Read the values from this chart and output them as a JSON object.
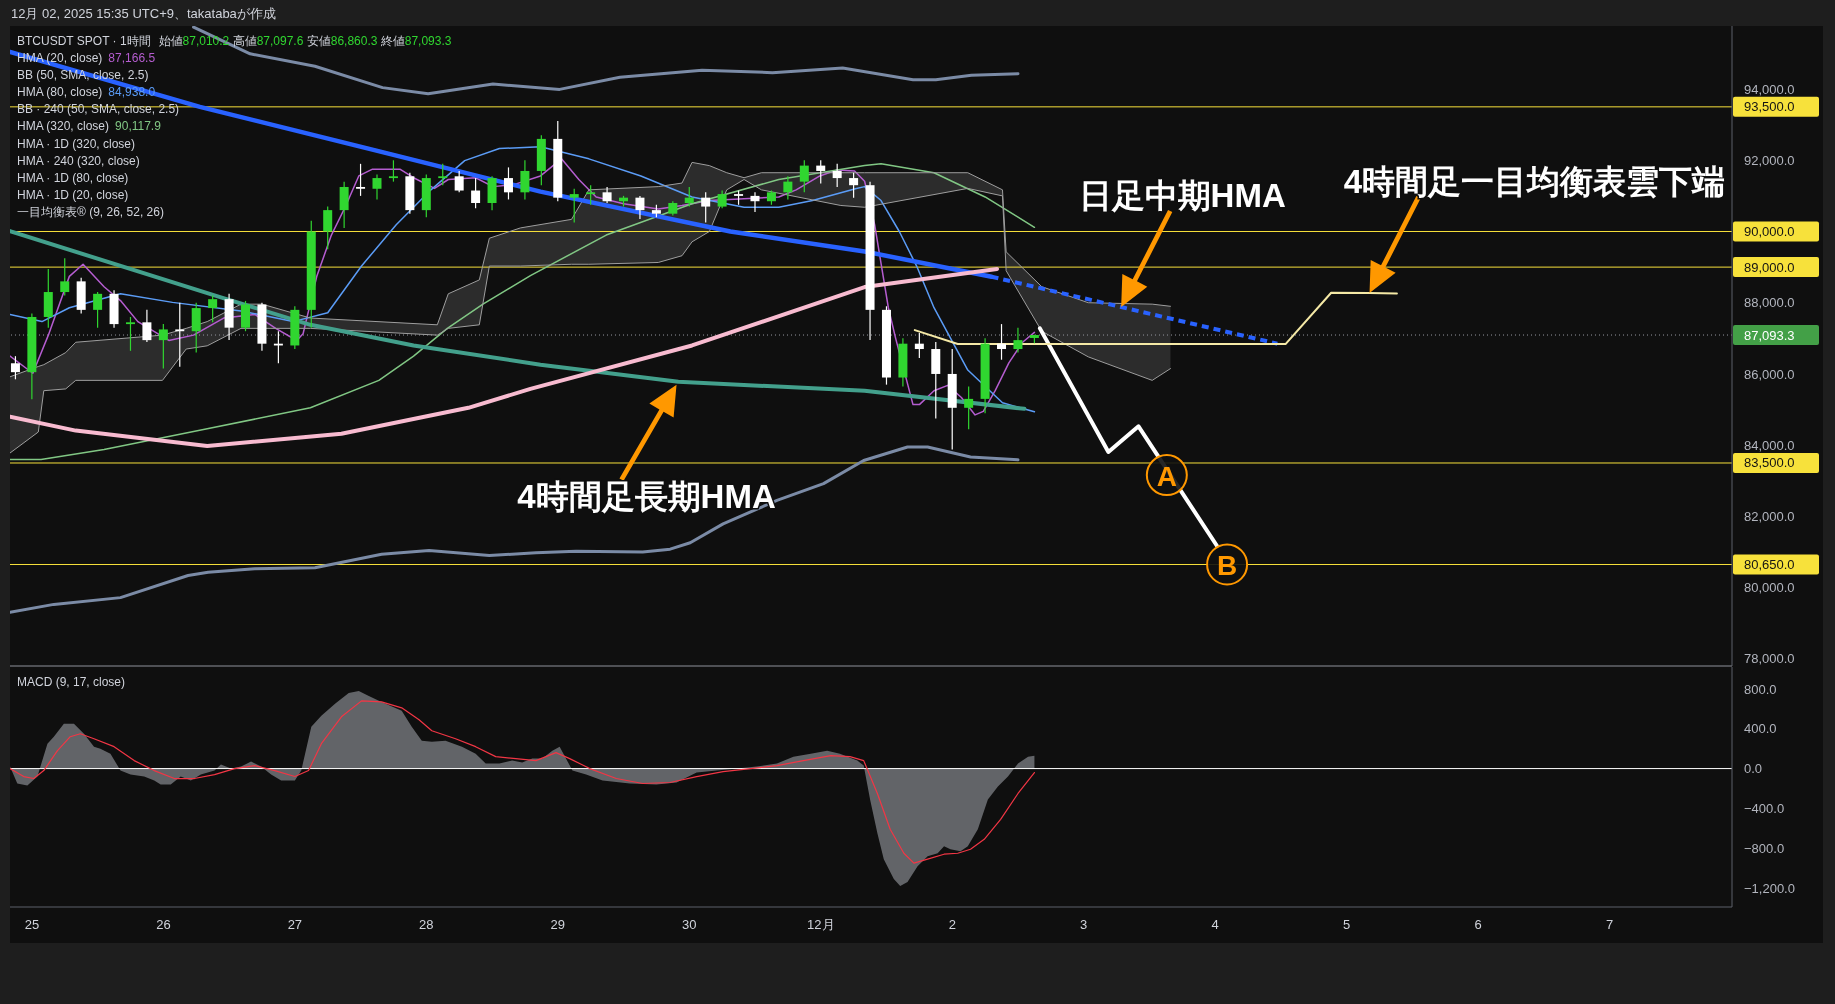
{
  "chart_data": [
    {
      "type": "candlestick",
      "title": "BTCUSDT SPOT · 1時間",
      "annotations": [
        "12月 02, 2025 15:35 UTC+9、takatabaが作成",
        "始値87,010.2 高値87,097.6 安値86,860.3 終値87,093.3",
        "HMA (20, close) 87,166.5",
        "BB (50, SMA, close, 2.5)",
        "HMA (80, close) 84,938.0",
        "BB · 240 (50, SMA, close, 2.5)",
        "HMA (320, close) 90,117.9",
        "HMA · 1D (320, close)",
        "HMA · 240 (320, close)",
        "HMA · 1D (80, close)",
        "HMA · 1D (20, close)",
        "一目均衡表® (9, 26, 52, 26)",
        {
          "text": "日足中期HMA",
          "x": "2025-12-03T06:50",
          "y": 87880
        },
        {
          "text": "4時間足一目均衡表雲下端",
          "x": "2025-12-05T04:10",
          "y": 88270
        },
        {
          "text": "4時間足長期HMA",
          "x": "2025-11-29T21:40",
          "y": 85700
        },
        {
          "text": "A",
          "x": "2025-12-03T15:10",
          "y": 83160
        },
        {
          "text": "B",
          "x": "2025-12-04T02:10",
          "y": 80650
        }
      ],
      "x": [
        "2025-11-24T21:00",
        "2025-11-25T00:00",
        "2025-11-25T03:00",
        "2025-11-25T06:00",
        "2025-11-25T09:00",
        "2025-11-25T12:00",
        "2025-11-25T15:00",
        "2025-11-25T18:00",
        "2025-11-25T21:00",
        "2025-11-26T00:00",
        "2025-11-26T03:00",
        "2025-11-26T06:00",
        "2025-11-26T09:00",
        "2025-11-26T12:00",
        "2025-11-26T15:00",
        "2025-11-26T18:00",
        "2025-11-26T21:00",
        "2025-11-27T00:00",
        "2025-11-27T03:00",
        "2025-11-27T06:00",
        "2025-11-27T09:00",
        "2025-11-27T12:00",
        "2025-11-27T15:00",
        "2025-11-27T18:00",
        "2025-11-27T21:00",
        "2025-11-28T00:00",
        "2025-11-28T03:00",
        "2025-11-28T06:00",
        "2025-11-28T09:00",
        "2025-11-28T12:00",
        "2025-11-28T15:00",
        "2025-11-28T18:00",
        "2025-11-28T21:00",
        "2025-11-29T00:00",
        "2025-11-29T03:00",
        "2025-11-29T06:00",
        "2025-11-29T09:00",
        "2025-11-29T12:00",
        "2025-11-29T15:00",
        "2025-11-29T18:00",
        "2025-11-29T21:00",
        "2025-11-30T00:00",
        "2025-11-30T03:00",
        "2025-11-30T06:00",
        "2025-11-30T09:00",
        "2025-11-30T12:00",
        "2025-11-30T15:00",
        "2025-11-30T18:00",
        "2025-11-30T21:00",
        "2025-12-01T00:00",
        "2025-12-01T03:00",
        "2025-12-01T06:00",
        "2025-12-01T09:00",
        "2025-12-01T12:00",
        "2025-12-01T15:00",
        "2025-12-01T18:00",
        "2025-12-01T21:00",
        "2025-12-02T00:00",
        "2025-12-02T03:00",
        "2025-12-02T06:00",
        "2025-12-02T09:00",
        "2025-12-02T12:00",
        "2025-12-02T15:00"
      ],
      "ohlc": [
        [
          86300,
          86500,
          85850,
          86050
        ],
        [
          86050,
          87700,
          85290,
          87600
        ],
        [
          87600,
          88950,
          87300,
          88300
        ],
        [
          88300,
          89250,
          88200,
          88600
        ],
        [
          88600,
          88700,
          87700,
          87800
        ],
        [
          87800,
          88300,
          87300,
          88250
        ],
        [
          88250,
          88350,
          87300,
          87400
        ],
        [
          87400,
          87600,
          86650,
          87450
        ],
        [
          87450,
          87800,
          86900,
          86950
        ],
        [
          86950,
          87400,
          86150,
          87250
        ],
        [
          87250,
          88000,
          86200,
          87200
        ],
        [
          87200,
          88000,
          86600,
          87850
        ],
        [
          87850,
          88200,
          87450,
          88100
        ],
        [
          88100,
          88250,
          86950,
          87300
        ],
        [
          87300,
          88050,
          87200,
          87950
        ],
        [
          87950,
          88000,
          86650,
          86850
        ],
        [
          86850,
          87200,
          86300,
          86800
        ],
        [
          86800,
          87900,
          86700,
          87800
        ],
        [
          87800,
          90300,
          87300,
          90000
        ],
        [
          90000,
          90700,
          89500,
          90600
        ],
        [
          90600,
          91400,
          90100,
          91250
        ],
        [
          91250,
          91900,
          91000,
          91200
        ],
        [
          91200,
          91600,
          90900,
          91500
        ],
        [
          91500,
          92000,
          91400,
          91550
        ],
        [
          91550,
          91650,
          90500,
          90600
        ],
        [
          90600,
          91600,
          90400,
          91500
        ],
        [
          91500,
          91900,
          91300,
          91550
        ],
        [
          91550,
          91700,
          91100,
          91150
        ],
        [
          91150,
          91500,
          90650,
          90800
        ],
        [
          90800,
          91550,
          90600,
          91500
        ],
        [
          91500,
          91800,
          90900,
          91100
        ],
        [
          91100,
          92000,
          90900,
          91700
        ],
        [
          91700,
          92700,
          91300,
          92600
        ],
        [
          92600,
          93100,
          90850,
          90950
        ],
        [
          90950,
          91200,
          90250,
          91050
        ],
        [
          91050,
          91300,
          90750,
          91100
        ],
        [
          91100,
          91250,
          90800,
          90850
        ],
        [
          90850,
          91000,
          90700,
          90950
        ],
        [
          90950,
          91000,
          90350,
          90600
        ],
        [
          90600,
          90750,
          90400,
          90500
        ],
        [
          90500,
          90850,
          90450,
          90800
        ],
        [
          90800,
          91250,
          90700,
          90950
        ],
        [
          90950,
          91100,
          90250,
          90700
        ],
        [
          90700,
          91150,
          90650,
          91050
        ],
        [
          91050,
          91150,
          90750,
          91000
        ],
        [
          91000,
          91100,
          90550,
          90850
        ],
        [
          90850,
          91150,
          90750,
          91100
        ],
        [
          91100,
          91550,
          90900,
          91400
        ],
        [
          91400,
          92000,
          91100,
          91850
        ],
        [
          91850,
          92000,
          91350,
          91700
        ],
        [
          91700,
          91900,
          91250,
          91500
        ],
        [
          91500,
          91650,
          90950,
          91300
        ],
        [
          91300,
          91400,
          86950,
          87800
        ],
        [
          87800,
          87900,
          85700,
          85900
        ],
        [
          85900,
          87000,
          85650,
          86850
        ],
        [
          86850,
          87150,
          86450,
          86700
        ],
        [
          86700,
          86900,
          84750,
          86000
        ],
        [
          86000,
          86700,
          83880,
          85050
        ],
        [
          85050,
          85650,
          84450,
          85300
        ],
        [
          85300,
          87000,
          84900,
          86850
        ],
        [
          86850,
          87400,
          86400,
          86700
        ],
        [
          86700,
          87300,
          86600,
          86950
        ],
        [
          87010.2,
          87097.6,
          86860.3,
          87093.3
        ]
      ],
      "colors": [
        "#ffffff",
        "#30d630",
        "#30d630",
        "#30d630",
        "#ffffff",
        "#30d630",
        "#ffffff",
        "#30d630",
        "#ffffff",
        "#30d630",
        "#ffffff",
        "#30d630",
        "#30d630",
        "#ffffff",
        "#30d630",
        "#ffffff",
        "#ffffff",
        "#30d630",
        "#30d630",
        "#30d630",
        "#30d630",
        "#ffffff",
        "#30d630",
        "#30d630",
        "#ffffff",
        "#30d630",
        "#30d630",
        "#ffffff",
        "#ffffff",
        "#30d630",
        "#ffffff",
        "#30d630",
        "#30d630",
        "#ffffff",
        "#30d630",
        "#30d630",
        "#ffffff",
        "#30d630",
        "#ffffff",
        "#ffffff",
        "#30d630",
        "#30d630",
        "#ffffff",
        "#30d630",
        "#ffffff",
        "#ffffff",
        "#30d630",
        "#30d630",
        "#30d630",
        "#ffffff",
        "#ffffff",
        "#ffffff",
        "#ffffff",
        "#ffffff",
        "#30d630",
        "#ffffff",
        "#ffffff",
        "#ffffff",
        "#30d630",
        "#30d630",
        "#ffffff",
        "#30d630",
        "#30d630"
      ],
      "series": [
        {
          "type": "line",
          "color": "#b55dd0",
          "x": [
            "2025-11-24T20:00",
            "2025-11-25T00:10",
            "2025-11-25T03:00",
            "2025-11-25T06:50",
            "2025-11-25T09:20",
            "2025-11-25T13:10",
            "2025-11-25T16:10",
            "2025-11-25T19:20",
            "2025-11-26T01:00",
            "2025-11-26T05:30",
            "2025-11-26T11:00",
            "2025-11-26T16:40",
            "2025-11-26T20:30",
            "2025-11-27T00:20",
            "2025-11-27T01:30",
            "2025-11-27T04:00",
            "2025-11-27T06:40",
            "2025-11-27T09:10",
            "2025-11-27T11:40",
            "2025-11-27T14:10",
            "2025-11-27T19:10",
            "2025-11-27T21:40",
            "2025-11-28T01:30",
            "2025-11-28T04:00",
            "2025-11-28T09:00",
            "2025-11-28T12:10",
            "2025-11-28T15:50",
            "2025-11-28T20:50",
            "2025-11-29T00:40",
            "2025-11-29T03:50",
            "2025-11-29T07:00",
            "2025-11-29T12:00",
            "2025-11-29T18:20",
            "2025-11-29T22:40",
            "2025-11-30T03:40",
            "2025-11-30T10:00",
            "2025-11-30T16:20",
            "2025-11-30T19:30",
            "2025-11-30T23:50",
            "2025-12-01T03:00",
            "2025-12-01T06:10",
            "2025-12-01T08:00",
            "2025-12-01T09:50",
            "2025-12-01T12:20",
            "2025-12-01T13:40",
            "2025-12-01T16:50",
            "2025-12-01T18:00",
            "2025-12-01T20:40",
            "2025-12-01T23:10",
            "2025-12-02T01:40",
            "2025-12-02T04:10",
            "2025-12-02T05:40",
            "2025-12-02T07:50",
            "2025-12-02T10:20",
            "2025-12-02T12:50",
            "2025-12-02T15:00"
          ],
          "values": [
            86500,
            86020,
            87090,
            88740,
            89080,
            88450,
            88060,
            87470,
            86940,
            87090,
            87570,
            87670,
            87280,
            86940,
            87130,
            88740,
            89900,
            90680,
            91560,
            91750,
            91750,
            91510,
            91210,
            91460,
            91510,
            91260,
            91310,
            91560,
            92040,
            91460,
            90970,
            90780,
            90630,
            90730,
            90870,
            90920,
            90970,
            91170,
            91560,
            91730,
            91700,
            91410,
            90190,
            87860,
            87000,
            85140,
            85140,
            85530,
            85680,
            85340,
            84850,
            84950,
            85530,
            86310,
            86890,
            87166.5
          ]
        },
        {
          "type": "line",
          "color": "#5b9cf6",
          "x": [
            "2025-11-24T20:00",
            "2025-11-25T01:50",
            "2025-11-25T06:50",
            "2025-11-25T16:10",
            "2025-11-26T01:40",
            "2025-11-26T14:10",
            "2025-11-26T23:40",
            "2025-11-27T06:00",
            "2025-11-27T12:10",
            "2025-11-27T18:30",
            "2025-11-28T00:50",
            "2025-11-28T07:00",
            "2025-11-28T13:20",
            "2025-11-28T20:50",
            "2025-11-29T05:40",
            "2025-11-29T15:10",
            "2025-11-30T00:30",
            "2025-11-30T10:00",
            "2025-11-30T16:20",
            "2025-11-30T22:30",
            "2025-12-01T06:30",
            "2025-12-01T08:00",
            "2025-12-01T11:00",
            "2025-12-01T14:20",
            "2025-12-01T17:30",
            "2025-12-01T20:40",
            "2025-12-02T02:50",
            "2025-12-02T09:10",
            "2025-12-02T15:00"
          ],
          "values": [
            87670,
            87470,
            87860,
            88250,
            88010,
            87770,
            87470,
            87720,
            89030,
            90190,
            91170,
            91990,
            92330,
            92380,
            92040,
            91560,
            90970,
            90680,
            90680,
            90870,
            91210,
            91260,
            90870,
            90000,
            89030,
            87860,
            86110,
            85190,
            84938
          ]
        },
        {
          "type": "line",
          "color": "#81c784",
          "x": [
            "2025-11-24T20:00",
            "2025-11-25T01:40",
            "2025-11-25T13:10",
            "2025-11-26T08:00",
            "2025-11-27T02:50",
            "2025-11-27T15:20",
            "2025-11-27T21:40",
            "2025-11-28T03:50",
            "2025-11-28T10:20",
            "2025-11-28T19:00",
            "2025-11-29T08:50",
            "2025-11-30T00:30",
            "2025-11-30T16:20",
            "2025-12-01T08:00",
            "2025-12-01T11:00",
            "2025-12-01T20:40",
            "2025-12-02T06:00",
            "2025-12-02T15:00"
          ],
          "values": [
            83600,
            83600,
            83880,
            84460,
            85050,
            85820,
            86500,
            87280,
            87960,
            88760,
            89900,
            90780,
            91460,
            91850,
            91900,
            91650,
            90970,
            90117.9
          ]
        },
        {
          "type": "line",
          "color": "#7b8ba6",
          "x": [
            "2025-11-26T05:30",
            "2025-11-26T15:50",
            "2025-11-27T03:40",
            "2025-11-27T16:00",
            "2025-11-28T00:20",
            "2025-11-28T12:10",
            "2025-11-29T00:20",
            "2025-11-29T11:20",
            "2025-11-30T02:20",
            "2025-11-30T15:10",
            "2025-12-01T04:00",
            "2025-12-01T16:50",
            "2025-12-01T21:00",
            "2025-12-02T03:30",
            "2025-12-02T12:00"
          ],
          "values": [
            95740,
            94990,
            94640,
            94040,
            93870,
            94140,
            93990,
            94330,
            94530,
            94460,
            94590,
            94260,
            94260,
            94390,
            94430
          ]
        },
        {
          "type": "line",
          "color": "#7b8ba6",
          "x": [
            "2025-11-24T20:00",
            "2025-11-25T04:00",
            "2025-11-25T16:10",
            "2025-11-26T04:30",
            "2025-11-26T08:10",
            "2025-11-26T16:40",
            "2025-11-27T03:40",
            "2025-11-27T15:50",
            "2025-11-28T00:30",
            "2025-11-28T11:30",
            "2025-11-28T20:00",
            "2025-11-29T03:20",
            "2025-11-29T15:30",
            "2025-11-29T20:30",
            "2025-11-30T00:10",
            "2025-11-30T06:10",
            "2025-11-30T16:00",
            "2025-12-01T00:30",
            "2025-12-01T07:50",
            "2025-12-01T15:50",
            "2025-12-01T19:30",
            "2025-12-02T03:20",
            "2025-12-02T12:00"
          ],
          "values": [
            79310,
            79530,
            79720,
            80340,
            80430,
            80530,
            80560,
            80940,
            81040,
            80900,
            80980,
            81020,
            81000,
            81080,
            81260,
            81790,
            82450,
            82920,
            83570,
            83950,
            83950,
            83670,
            83590
          ]
        },
        {
          "type": "line",
          "color": "#9e9e9e",
          "x": [
            "2025-11-24T20:00",
            "2025-11-25T01:10",
            "2025-11-25T02:10",
            "2025-11-25T06:10",
            "2025-11-25T08:00",
            "2025-11-25T23:50",
            "2025-11-26T04:10",
            "2025-11-26T08:00",
            "2025-11-26T14:10",
            "2025-11-26T18:00",
            "2025-11-27T02:50",
            "2025-11-28T02:00",
            "2025-11-28T04:00",
            "2025-11-28T09:40",
            "2025-11-28T11:30",
            "2025-11-28T17:10",
            "2025-11-29T02:30",
            "2025-11-29T05:40",
            "2025-11-29T18:20",
            "2025-11-29T22:40",
            "2025-11-30T00:30",
            "2025-11-30T03:40",
            "2025-11-30T06:50",
            "2025-11-30T10:00",
            "2025-11-30T13:10",
            "2025-12-01T03:40",
            "2025-12-01T08:00",
            "2025-12-02T02:50",
            "2025-12-02T09:10",
            "2025-12-02T09:50",
            "2025-12-02T16:20",
            "2025-12-03T00:50",
            "2025-12-03T12:30",
            "2025-12-03T15:50"
          ],
          "values": [
            85920,
            86210,
            86260,
            86600,
            86890,
            87090,
            87280,
            87470,
            87960,
            87960,
            87570,
            87380,
            88250,
            88640,
            89810,
            90100,
            90340,
            91170,
            91260,
            91360,
            91940,
            91850,
            91650,
            91510,
            91650,
            91650,
            91650,
            91650,
            91170,
            89430,
            88450,
            88000,
            87960,
            87900
          ],
          "upper": [
            85920,
            86210,
            86260,
            86600,
            86890,
            87090,
            87280,
            87470,
            87960,
            87960,
            87570,
            87380,
            88250,
            88640,
            89810,
            90100,
            90340,
            91170,
            91260,
            91360,
            91940,
            91850,
            91650,
            91510,
            91650,
            91650,
            91650,
            91650,
            91170,
            89430,
            88450,
            88000,
            87960,
            87900
          ],
          "lower": [
            83780,
            84370,
            85530,
            85580,
            85820,
            85820,
            86700,
            86790,
            87280,
            87280,
            87280,
            87090,
            87280,
            87380,
            89030,
            89030,
            89080,
            89080,
            89130,
            89320,
            89710,
            90000,
            91170,
            91460,
            91170,
            90730,
            90680,
            91210,
            91000,
            88900,
            87200,
            86480,
            85820,
            86150
          ]
        },
        {
          "type": "line",
          "color": "#9e9e9e",
          "x": [
            "2025-11-24T20:00",
            "2025-11-25T01:10",
            "2025-11-25T02:10",
            "2025-11-25T06:10",
            "2025-11-25T08:00",
            "2025-11-25T23:50",
            "2025-11-26T04:10",
            "2025-11-26T08:00",
            "2025-11-26T14:10",
            "2025-11-26T18:00",
            "2025-11-27T02:50",
            "2025-11-28T02:00",
            "2025-11-28T04:00",
            "2025-11-28T09:40",
            "2025-11-28T11:30",
            "2025-11-28T17:10",
            "2025-11-29T02:30",
            "2025-11-29T05:40",
            "2025-11-29T18:20",
            "2025-11-29T22:40",
            "2025-11-30T00:30",
            "2025-11-30T03:40",
            "2025-11-30T06:50",
            "2025-11-30T10:00",
            "2025-11-30T13:10",
            "2025-12-01T03:40",
            "2025-12-01T08:00",
            "2025-12-02T02:50",
            "2025-12-02T09:10",
            "2025-12-02T09:50",
            "2025-12-02T16:20",
            "2025-12-03T00:50",
            "2025-12-03T12:30",
            "2025-12-03T15:50"
          ],
          "values": [
            83780,
            84370,
            85530,
            85580,
            85820,
            85820,
            86700,
            86790,
            87280,
            87280,
            87280,
            87090,
            87280,
            87380,
            89030,
            89030,
            89080,
            89080,
            89130,
            89320,
            89710,
            90000,
            91170,
            91460,
            91170,
            90730,
            90680,
            91210,
            91000,
            88900,
            87200,
            86480,
            85820,
            86150
          ]
        },
        {
          "type": "line",
          "color": "#2962ff",
          "x": [
            "2025-11-24T20:00",
            "2025-11-26T06:40",
            "2025-11-27T14:20",
            "2025-11-28T20:50",
            "2025-11-30T07:30",
            "2025-12-01T08:00",
            "2025-12-02T07:10"
          ],
          "values": [
            95040,
            93500,
            92290,
            91120,
            90000,
            89440,
            88730
          ]
        },
        {
          "type": "line",
          "color": "#2962ff",
          "line_style": "dotted",
          "x": [
            "2025-12-02T07:10",
            "2025-12-03T06:50",
            "2025-12-04T11:20"
          ],
          "values": [
            88730,
            87880,
            86850
          ]
        },
        {
          "type": "line",
          "color": "#43a08c",
          "x": [
            "2025-11-24T20:00",
            "2025-11-26T10:30",
            "2025-11-27T02:50",
            "2025-11-27T21:40",
            "2025-11-28T20:50",
            "2025-11-29T22:00",
            "2025-12-01T08:00",
            "2025-12-02T13:10"
          ],
          "values": [
            90010,
            88150,
            87380,
            86800,
            86260,
            85780,
            85530,
            85020
          ]
        },
        {
          "type": "line",
          "color": "#f8bbd0",
          "x": [
            "2025-11-24T20:00",
            "2025-11-25T08:00",
            "2025-11-26T08:00",
            "2025-11-27T08:30",
            "2025-11-28T07:40",
            "2025-11-28T19:00",
            "2025-11-30T00:30",
            "2025-12-01T08:00",
            "2025-12-02T08:10"
          ],
          "values": [
            84800,
            84410,
            83980,
            84320,
            85050,
            85580,
            86800,
            88440,
            88950
          ]
        },
        {
          "type": "line",
          "color": "#ffffff",
          "x": [
            "2025-12-02T16:00",
            "2025-12-03T04:30",
            "2025-12-03T10:00",
            "2025-12-04T00:20"
          ],
          "values": [
            87280,
            83810,
            84530,
            81170
          ]
        },
        {
          "type": "line",
          "color": "#f5e9a6",
          "x": [
            "2025-12-01T17:10",
            "2025-12-02T01:00",
            "2025-12-04T12:50",
            "2025-12-04T21:10",
            "2025-12-05T04:10",
            "2025-12-05T09:10"
          ],
          "values": [
            87230,
            86840,
            86840,
            88280,
            88270,
            88260
          ]
        }
      ],
      "xlim": [
        "2025-11-24T20:00",
        "2025-12-07T22:20"
      ],
      "ylim": [
        77800,
        95770
      ],
      "yticks": [
        {
          "value": 94000,
          "label": "94,000.0"
        },
        {
          "value": 92000,
          "label": "92,000.0"
        },
        {
          "value": 88000,
          "label": "88,000.0"
        },
        {
          "value": 86000,
          "label": "86,000.0"
        },
        {
          "value": 84000,
          "label": "84,000.0"
        },
        {
          "value": 82000,
          "label": "82,000.0"
        },
        {
          "value": 80000,
          "label": "80,000.0"
        },
        {
          "value": 78000,
          "label": "78,000.0"
        }
      ],
      "ref_lines": [
        {
          "axis": "y",
          "value": 93500,
          "label": "93,500.0",
          "color": "#f7e13b"
        },
        {
          "axis": "y",
          "value": 90000,
          "label": "90,000.0",
          "color": "#f7e13b"
        },
        {
          "axis": "y",
          "value": 89000,
          "label": "89,000.0",
          "color": "#f7e13b"
        },
        {
          "axis": "y",
          "value": 83500,
          "label": "83,500.0",
          "color": "#f7e13b"
        },
        {
          "axis": "y",
          "value": 80650,
          "label": "80,650.0",
          "color": "#f7e13b"
        },
        {
          "axis": "y",
          "value": 87093.3,
          "label": "87,093.3",
          "color": "#9598a1",
          "line_style": "dotted"
        }
      ],
      "tick_labels": "y"
    },
    {
      "type": "area",
      "title": "MACD (9, 17, close)",
      "series": [
        {
          "type": "area",
          "color": "#67696e",
          "x": [
            "2025-11-24T20:00",
            "2025-11-24T21:20",
            "2025-11-24T23:10",
            "2025-11-25T01:00",
            "2025-11-25T02:50",
            "2025-11-25T04:00",
            "2025-11-25T05:50",
            "2025-11-25T07:40",
            "2025-11-25T09:30",
            "2025-11-25T11:20",
            "2025-11-25T12:30",
            "2025-11-25T14:20",
            "2025-11-25T16:10",
            "2025-11-25T18:00",
            "2025-11-25T20:30",
            "2025-11-25T22:20",
            "2025-11-25T23:30",
            "2025-11-26T01:20",
            "2025-11-26T03:10",
            "2025-11-26T05:00",
            "2025-11-26T06:50",
            "2025-11-26T09:20",
            "2025-11-26T10:30",
            "2025-11-26T12:20",
            "2025-11-26T14:10",
            "2025-11-26T16:00",
            "2025-11-26T17:50",
            "2025-11-26T19:40",
            "2025-11-26T21:30",
            "2025-11-27T00:00",
            "2025-11-27T01:10",
            "2025-11-27T03:00",
            "2025-11-27T04:50",
            "2025-11-27T07:20",
            "2025-11-27T09:50",
            "2025-11-27T11:40",
            "2025-11-27T13:30",
            "2025-11-27T15:20",
            "2025-11-27T19:30",
            "2025-11-27T21:20",
            "2025-11-27T23:10",
            "2025-11-28T01:00",
            "2025-11-28T03:30",
            "2025-11-28T06:30",
            "2025-11-28T09:00",
            "2025-11-28T10:50",
            "2025-11-28T13:20",
            "2025-11-28T15:40",
            "2025-11-28T17:30",
            "2025-11-28T19:20",
            "2025-11-28T21:10",
            "2025-11-28T23:00",
            "2025-11-29T00:20",
            "2025-11-29T02:40",
            "2025-11-29T05:10",
            "2025-11-29T08:10",
            "2025-11-29T13:10",
            "2025-11-29T18:00",
            "2025-11-29T21:40",
            "2025-11-30T01:20",
            "2025-11-30T05:00",
            "2025-11-30T08:40",
            "2025-11-30T12:20",
            "2025-11-30T16:00",
            "2025-11-30T19:00",
            "2025-11-30T22:10",
            "2025-12-01T01:10",
            "2025-12-01T03:30",
            "2025-12-01T06:40",
            "2025-12-01T07:50",
            "2025-12-01T09:00",
            "2025-12-01T10:20",
            "2025-12-01T11:30",
            "2025-12-01T13:20",
            "2025-12-01T14:30",
            "2025-12-01T15:50",
            "2025-12-01T17:40",
            "2025-12-01T19:30",
            "2025-12-01T21:20",
            "2025-12-01T22:30",
            "2025-12-01T23:40",
            "2025-12-02T01:30",
            "2025-12-02T02:50",
            "2025-12-02T04:40",
            "2025-12-02T06:30",
            "2025-12-02T08:20",
            "2025-12-02T10:10",
            "2025-12-02T12:00",
            "2025-12-02T13:50",
            "2025-12-02T15:00"
          ],
          "values": [
            20,
            -150,
            -170,
            -80,
            250,
            320,
            450,
            450,
            350,
            220,
            200,
            150,
            -20,
            -60,
            -80,
            -120,
            -160,
            -160,
            -80,
            -120,
            -60,
            -20,
            40,
            0,
            20,
            70,
            20,
            -60,
            -120,
            -120,
            -20,
            420,
            530,
            650,
            760,
            780,
            730,
            680,
            580,
            420,
            280,
            270,
            280,
            220,
            150,
            50,
            50,
            80,
            60,
            100,
            100,
            180,
            220,
            -20,
            -60,
            -120,
            -150,
            -160,
            -140,
            -40,
            -20,
            0,
            20,
            50,
            120,
            150,
            180,
            150,
            80,
            30,
            -310,
            -650,
            -910,
            -1110,
            -1180,
            -1140,
            -980,
            -880,
            -850,
            -780,
            -810,
            -830,
            -780,
            -610,
            -310,
            -180,
            -80,
            50,
            120,
            130
          ]
        },
        {
          "type": "line",
          "color": "#f23645",
          "x": [
            "2025-11-24T20:00",
            "2025-11-24T22:30",
            "2025-11-25T00:20",
            "2025-11-25T02:10",
            "2025-11-25T04:40",
            "2025-11-25T07:00",
            "2025-11-25T08:50",
            "2025-11-25T11:20",
            "2025-11-25T15:00",
            "2025-11-25T18:40",
            "2025-11-25T22:20",
            "2025-11-26T02:00",
            "2025-11-26T05:40",
            "2025-11-26T09:20",
            "2025-11-26T13:00",
            "2025-11-26T16:40",
            "2025-11-26T20:20",
            "2025-11-27T00:00",
            "2025-11-27T02:30",
            "2025-11-27T04:50",
            "2025-11-27T08:30",
            "2025-11-27T12:10",
            "2025-11-27T15:50",
            "2025-11-27T19:30",
            "2025-11-27T22:40",
            "2025-11-28T01:00",
            "2025-11-28T05:20",
            "2025-11-28T09:00",
            "2025-11-28T12:40",
            "2025-11-28T16:20",
            "2025-11-28T20:00",
            "2025-11-28T23:40",
            "2025-11-29T02:10",
            "2025-11-29T05:50",
            "2025-11-29T10:40",
            "2025-11-29T15:30",
            "2025-11-29T20:30",
            "2025-11-30T01:20",
            "2025-11-30T06:10",
            "2025-11-30T11:10",
            "2025-11-30T16:00",
            "2025-11-30T20:50",
            "2025-12-01T01:50",
            "2025-12-01T05:20",
            "2025-12-01T07:50",
            "2025-12-01T10:20",
            "2025-12-01T12:40",
            "2025-12-01T15:10",
            "2025-12-01T17:00",
            "2025-12-01T19:30",
            "2025-12-01T22:30",
            "2025-12-02T01:00",
            "2025-12-02T03:20",
            "2025-12-02T05:50",
            "2025-12-02T08:50",
            "2025-12-02T12:00",
            "2025-12-02T15:00"
          ],
          "values": [
            0,
            -80,
            -100,
            -20,
            180,
            320,
            350,
            300,
            220,
            80,
            -20,
            -100,
            -100,
            -60,
            0,
            30,
            -20,
            -80,
            -20,
            250,
            520,
            680,
            670,
            610,
            490,
            380,
            300,
            220,
            120,
            100,
            80,
            160,
            100,
            0,
            -100,
            -150,
            -140,
            -80,
            -30,
            0,
            30,
            80,
            130,
            120,
            80,
            -250,
            -610,
            -850,
            -950,
            -910,
            -860,
            -850,
            -810,
            -710,
            -510,
            -250,
            -40
          ]
        }
      ],
      "xlim": [
        "2025-11-24T20:00",
        "2025-12-07T22:20"
      ],
      "xticks": [
        {
          "value": "2025-11-25",
          "label": "25"
        },
        {
          "value": "2025-11-26",
          "label": "26"
        },
        {
          "value": "2025-11-27",
          "label": "27"
        },
        {
          "value": "2025-11-28",
          "label": "28"
        },
        {
          "value": "2025-11-29",
          "label": "29"
        },
        {
          "value": "2025-11-30",
          "label": "30"
        },
        {
          "value": "2025-12-01",
          "label": "12月"
        },
        {
          "value": "2025-12-02",
          "label": "2"
        },
        {
          "value": "2025-12-03",
          "label": "3"
        },
        {
          "value": "2025-12-04",
          "label": "4"
        },
        {
          "value": "2025-12-05",
          "label": "5"
        },
        {
          "value": "2025-12-06",
          "label": "6"
        },
        {
          "value": "2025-12-07",
          "label": "7"
        }
      ],
      "ylim": [
        -1390,
        1020
      ],
      "yticks": [
        {
          "value": 800,
          "label": "800.0"
        },
        {
          "value": 400,
          "label": "400.0"
        },
        {
          "value": 0,
          "label": "0.0"
        },
        {
          "value": -400,
          "label": "−400.0"
        },
        {
          "value": -800,
          "label": "−800.0"
        },
        {
          "value": -1200,
          "label": "−1,200.0"
        }
      ],
      "ref_lines": [
        {
          "axis": "y",
          "value": 0,
          "color": "#ffffff"
        }
      ]
    }
  ]
}
